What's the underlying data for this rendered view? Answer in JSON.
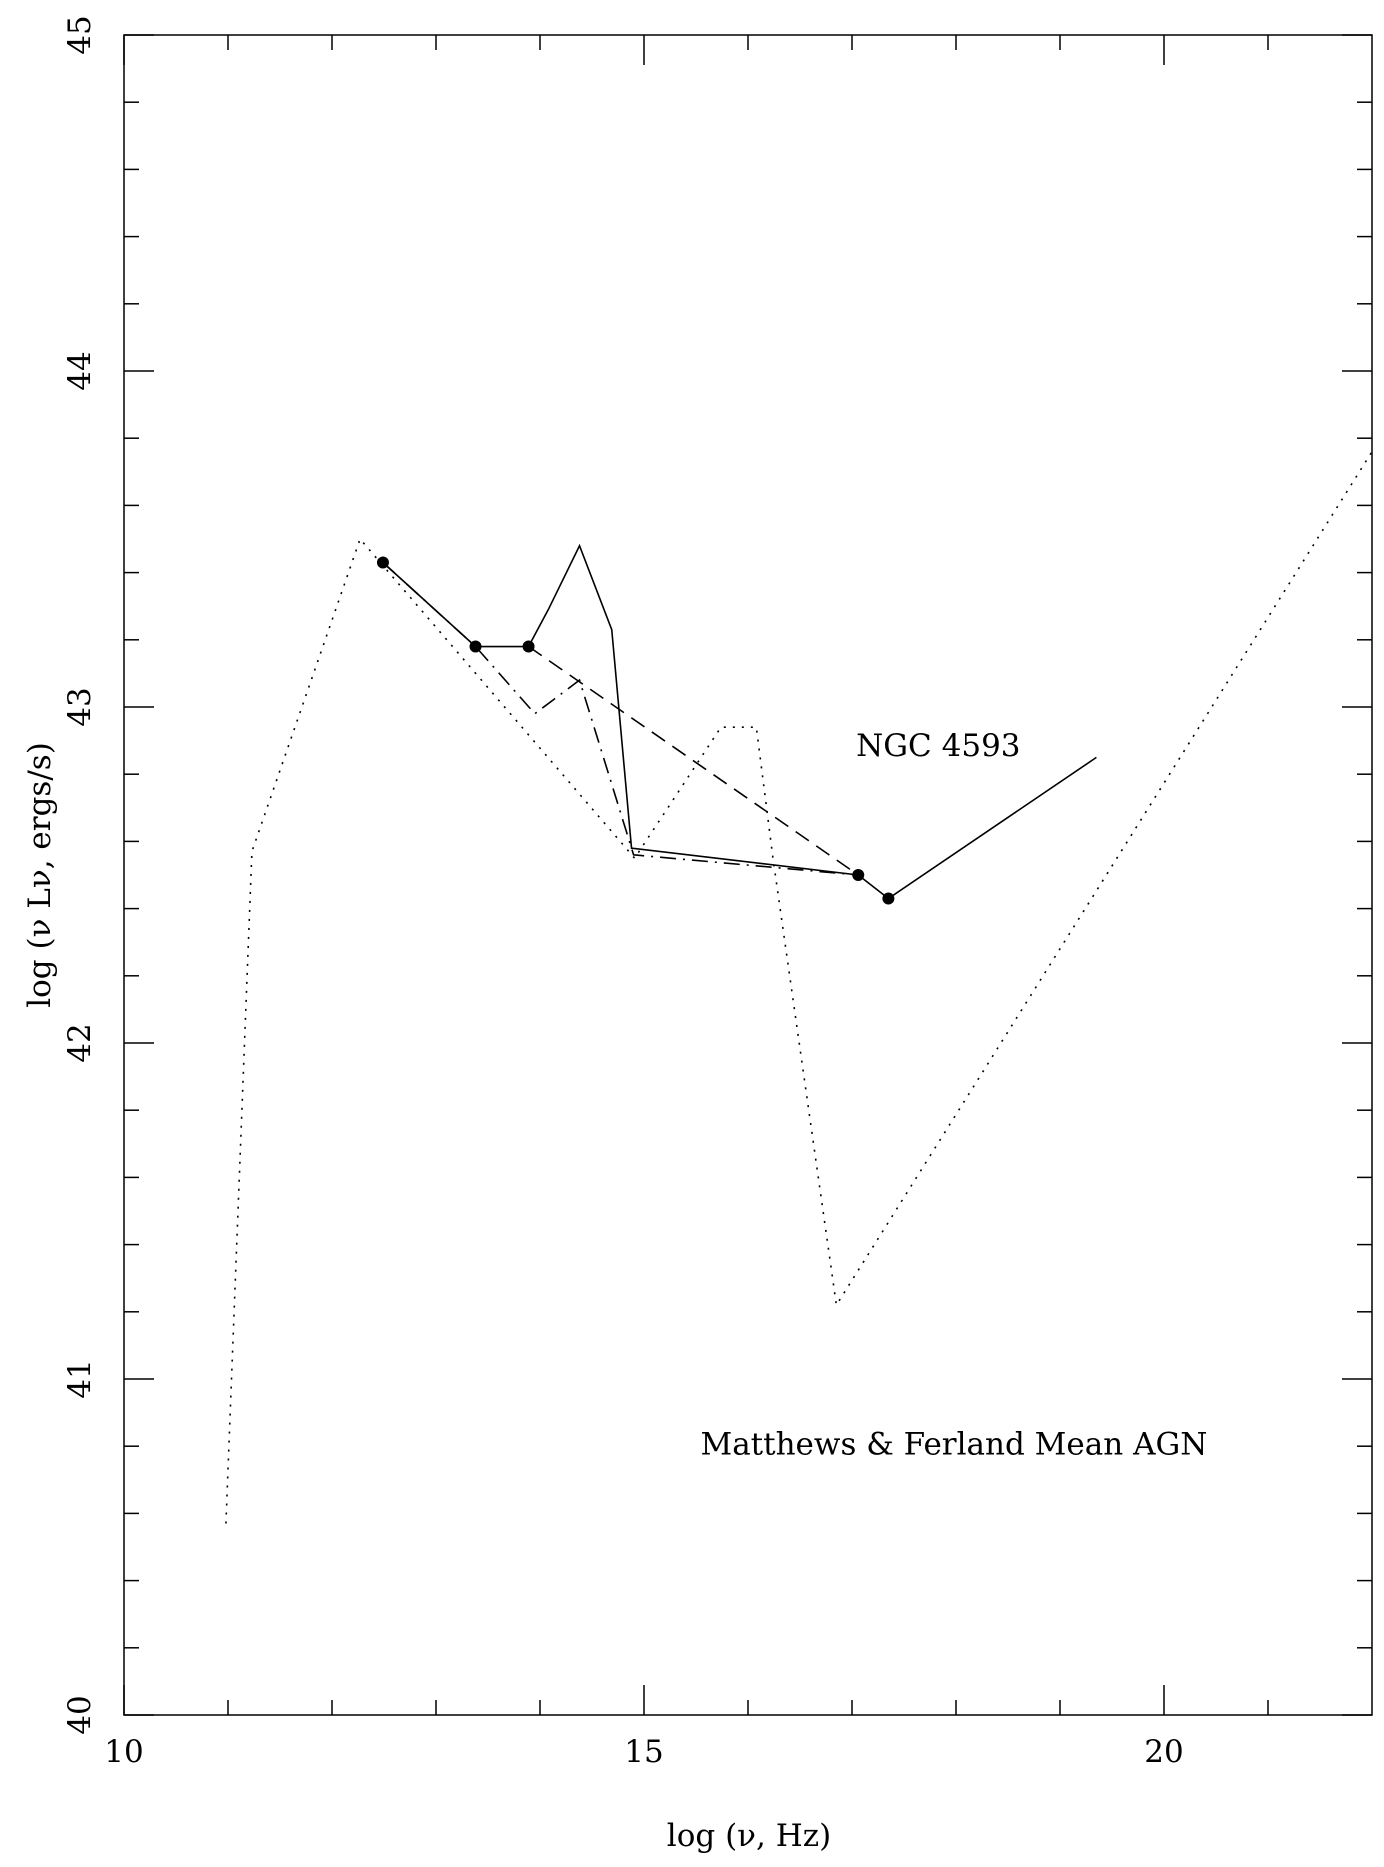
{
  "chart_data": {
    "type": "line",
    "xlabel": "log (ν, Hz)",
    "ylabel": "log (ν Lν, ergs/s)",
    "xlim": [
      10,
      22
    ],
    "ylim": [
      40,
      45
    ],
    "xticks": [
      10,
      15,
      20
    ],
    "yticks": [
      40,
      41,
      42,
      43,
      44,
      45
    ],
    "xminorticks": [
      11,
      12,
      13,
      14,
      16,
      17,
      18,
      19,
      21
    ],
    "yminorticks": [
      40.2,
      40.4,
      40.6,
      40.8,
      41.2,
      41.4,
      41.6,
      41.8,
      42.2,
      42.4,
      42.6,
      42.8,
      43.2,
      43.4,
      43.6,
      43.8,
      44.2,
      44.4,
      44.6,
      44.8
    ],
    "annotations": [
      {
        "text": "NGC 4593",
        "x": 17.04,
        "y": 42.88
      },
      {
        "text": "Matthews & Ferland Mean AGN",
        "x": 17.98,
        "y": 40.8
      }
    ],
    "series": [
      {
        "style": "dotted",
        "color": "#000000",
        "x": [
          10.98,
          11.23,
          12.27,
          14.91,
          15.74,
          16.08,
          16.24,
          16.63,
          16.85,
          22.0
        ],
        "values": [
          40.57,
          42.57,
          43.5,
          42.55,
          42.94,
          42.94,
          42.55,
          41.7,
          41.22,
          43.76
        ]
      },
      {
        "style": "solid",
        "color": "#000000",
        "x": [
          12.49,
          13.38,
          13.89,
          14.08,
          14.38,
          14.69,
          14.88,
          17.06,
          17.35,
          19.35
        ],
        "values": [
          43.43,
          43.18,
          43.18,
          43.29,
          43.48,
          43.23,
          42.58,
          42.5,
          42.43,
          42.85
        ]
      },
      {
        "style": "dashed",
        "color": "#000000",
        "x": [
          13.89,
          17.06
        ],
        "values": [
          43.18,
          42.5
        ]
      },
      {
        "style": "dashdot",
        "color": "#000000",
        "x": [
          12.49,
          13.38,
          13.95,
          14.38,
          14.9,
          17.06
        ],
        "values": [
          43.43,
          43.18,
          42.98,
          43.08,
          42.56,
          42.5
        ]
      },
      {
        "style": "points",
        "color": "#000000",
        "x": [
          12.49,
          13.38,
          13.89,
          17.06,
          17.35
        ],
        "values": [
          43.43,
          43.18,
          43.18,
          42.5,
          42.43
        ]
      }
    ]
  }
}
